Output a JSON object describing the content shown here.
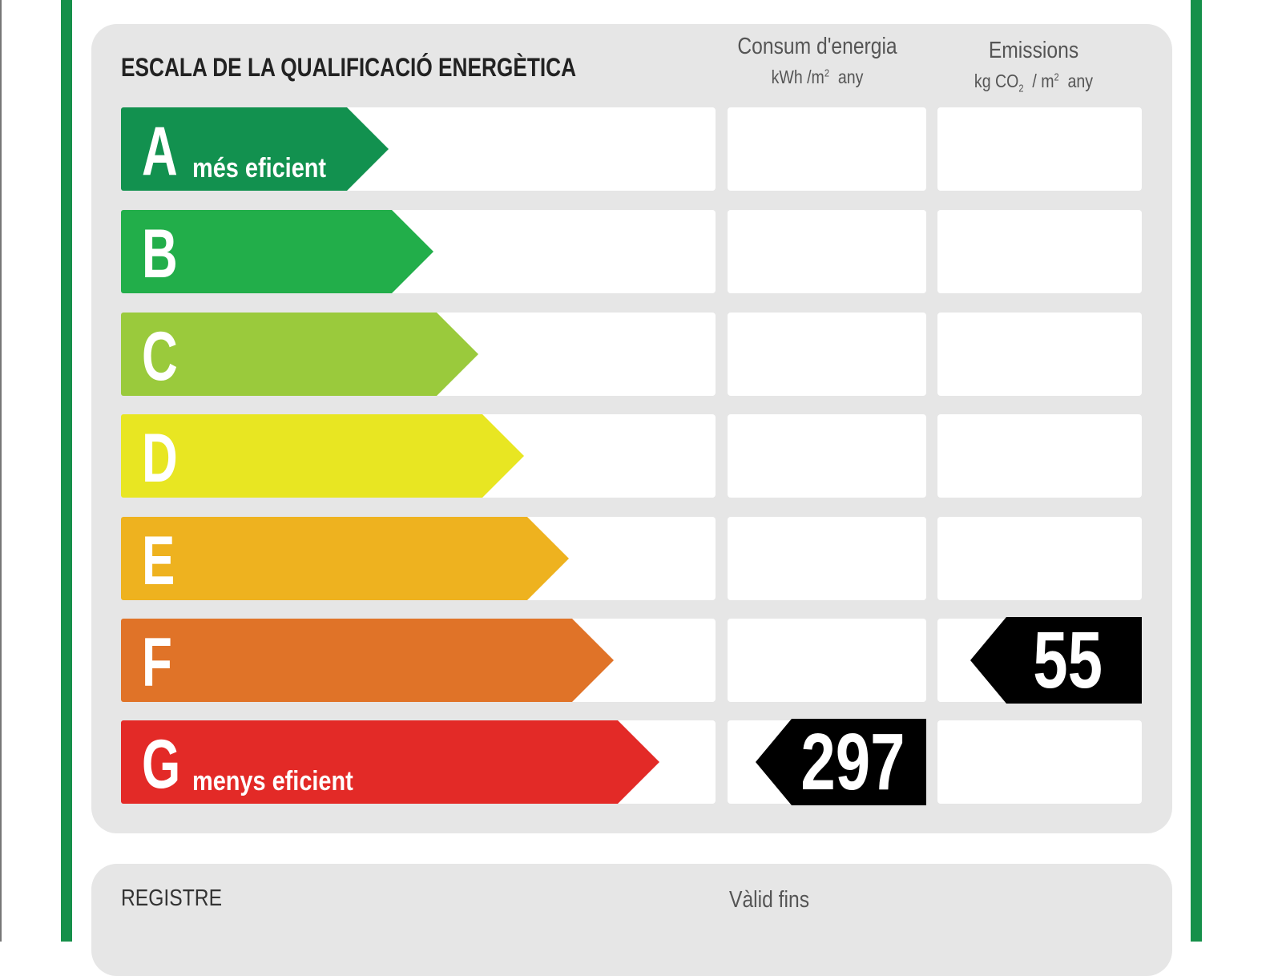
{
  "title": "ESCALA DE LA QUALIFICACIÓ ENERGÈTICA",
  "columns": {
    "consumption": {
      "label": "Consum d'energia",
      "unit_prefix": "kWh /m",
      "unit_sup": "2",
      "unit_suffix": "any"
    },
    "emissions": {
      "label": "Emissions",
      "unit_prefix": "kg CO",
      "unit_sub": "2",
      "unit_mid": "/ m",
      "unit_sup": "2",
      "unit_suffix": "any"
    }
  },
  "ratings": [
    {
      "letter": "A",
      "sub": "més eficient",
      "color": "#12914f"
    },
    {
      "letter": "B",
      "sub": "",
      "color": "#22ae4a"
    },
    {
      "letter": "C",
      "sub": "",
      "color": "#9aca3c"
    },
    {
      "letter": "D",
      "sub": "",
      "color": "#e8e622"
    },
    {
      "letter": "E",
      "sub": "",
      "color": "#eeb21f"
    },
    {
      "letter": "F",
      "sub": "",
      "color": "#e07328"
    },
    {
      "letter": "G",
      "sub": "menys eficient",
      "color": "#e32a27"
    }
  ],
  "indicators": {
    "consumption": {
      "value": "297",
      "rating": "G"
    },
    "emissions": {
      "value": "55",
      "rating": "F"
    }
  },
  "footer": {
    "registre": "REGISTRE",
    "valid": "Vàlid fins"
  }
}
